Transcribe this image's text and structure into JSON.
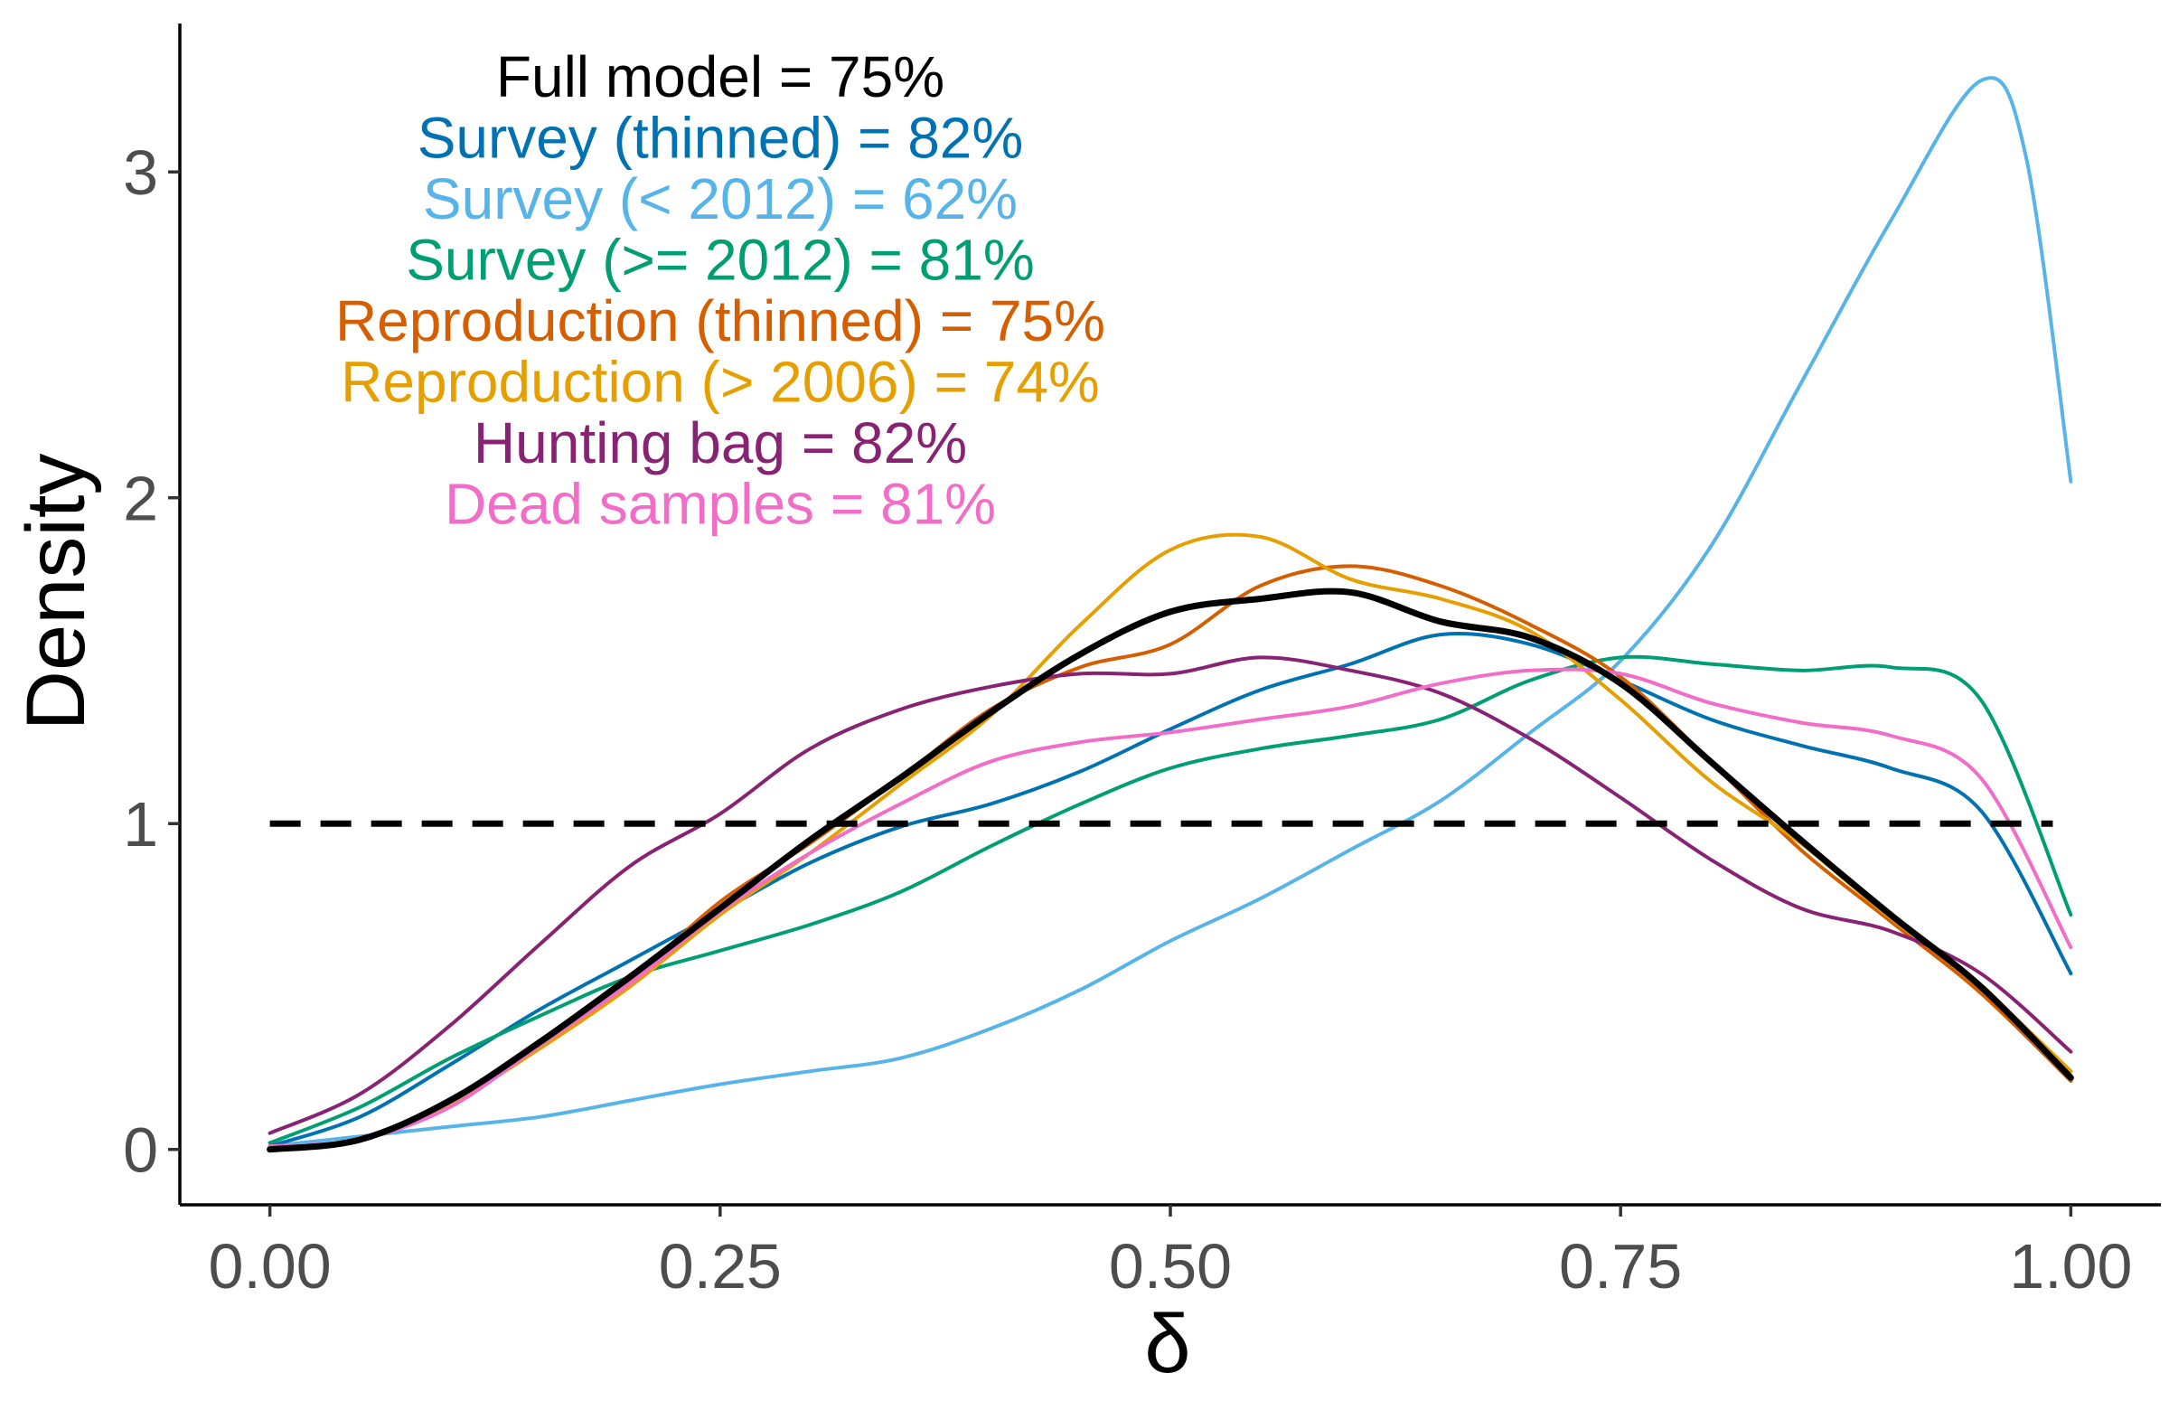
{
  "chart_data": {
    "type": "line",
    "xlabel": "δ",
    "ylabel": "Density",
    "xlim": [
      -0.05,
      1.05
    ],
    "ylim": [
      -0.17,
      3.45
    ],
    "x_ticks": [
      "0.00",
      "0.25",
      "0.50",
      "0.75",
      "1.00"
    ],
    "y_ticks": [
      "0",
      "1",
      "2",
      "3"
    ],
    "grid": false,
    "legend": "none",
    "reference_line": {
      "y": 1,
      "x_range": [
        0,
        0.99
      ],
      "style": "dashed",
      "color": "#000000"
    },
    "annotations": [
      {
        "text": "Full model = 75%",
        "color": "#000000"
      },
      {
        "text": "Survey (thinned) = 82%",
        "color": "#0072B2"
      },
      {
        "text": "Survey (< 2012) = 62%",
        "color": "#56B4E9"
      },
      {
        "text": "Survey (>= 2012) = 81%",
        "color": "#009E73"
      },
      {
        "text": "Reproduction (thinned) = 75%",
        "color": "#D55E00"
      },
      {
        "text": "Reproduction (> 2006) = 74%",
        "color": "#E69F00"
      },
      {
        "text": "Hunting bag = 82%",
        "color": "#882272"
      },
      {
        "text": "Dead samples = 81%",
        "color": "#F16DC7"
      }
    ],
    "x": [
      0,
      0.05,
      0.1,
      0.15,
      0.2,
      0.25,
      0.3,
      0.35,
      0.4,
      0.45,
      0.5,
      0.55,
      0.6,
      0.65,
      0.7,
      0.75,
      0.8,
      0.85,
      0.9,
      0.95,
      1.0
    ],
    "series": [
      {
        "name": "Survey (< 2012)",
        "color": "#56B4E9",
        "width": 4,
        "x": [
          0,
          0.05,
          0.1,
          0.15,
          0.2,
          0.25,
          0.3,
          0.35,
          0.4,
          0.45,
          0.5,
          0.55,
          0.6,
          0.65,
          0.7,
          0.75,
          0.8,
          0.85,
          0.9,
          0.95,
          0.975,
          1.0
        ],
        "values": [
          0.01,
          0.04,
          0.07,
          0.1,
          0.15,
          0.2,
          0.24,
          0.28,
          0.37,
          0.49,
          0.64,
          0.77,
          0.92,
          1.07,
          1.28,
          1.5,
          1.85,
          2.35,
          2.85,
          3.28,
          3.05,
          2.05
        ]
      },
      {
        "name": "Survey (thinned)",
        "color": "#0072B2",
        "width": 4,
        "values": [
          0.01,
          0.1,
          0.26,
          0.43,
          0.58,
          0.73,
          0.88,
          0.99,
          1.06,
          1.16,
          1.29,
          1.41,
          1.49,
          1.58,
          1.55,
          1.44,
          1.32,
          1.24,
          1.17,
          1.04,
          0.54
        ]
      },
      {
        "name": "Survey (>= 2012)",
        "color": "#009E73",
        "width": 4,
        "values": [
          0.02,
          0.13,
          0.28,
          0.41,
          0.53,
          0.61,
          0.69,
          0.79,
          0.93,
          1.06,
          1.17,
          1.23,
          1.27,
          1.32,
          1.44,
          1.51,
          1.49,
          1.47,
          1.48,
          1.38,
          0.72
        ]
      },
      {
        "name": "Reproduction (thinned)",
        "color": "#D55E00",
        "width": 4,
        "values": [
          0,
          0.03,
          0.14,
          0.33,
          0.52,
          0.76,
          0.94,
          1.14,
          1.35,
          1.48,
          1.55,
          1.73,
          1.79,
          1.73,
          1.61,
          1.45,
          1.19,
          0.92,
          0.7,
          0.48,
          0.21
        ]
      },
      {
        "name": "Reproduction (> 2006)",
        "color": "#E69F00",
        "width": 4,
        "values": [
          0,
          0.03,
          0.14,
          0.31,
          0.5,
          0.72,
          0.91,
          1.12,
          1.33,
          1.61,
          1.84,
          1.88,
          1.75,
          1.69,
          1.59,
          1.38,
          1.13,
          0.94,
          0.71,
          0.5,
          0.24
        ]
      },
      {
        "name": "Hunting bag",
        "color": "#882272",
        "width": 4,
        "values": [
          0.05,
          0.17,
          0.38,
          0.63,
          0.87,
          1.03,
          1.23,
          1.35,
          1.42,
          1.46,
          1.46,
          1.51,
          1.47,
          1.4,
          1.26,
          1.08,
          0.89,
          0.74,
          0.67,
          0.54,
          0.3
        ]
      },
      {
        "name": "Dead samples",
        "color": "#F16DC7",
        "width": 4,
        "values": [
          0.01,
          0.03,
          0.13,
          0.32,
          0.51,
          0.73,
          0.91,
          1.06,
          1.19,
          1.25,
          1.28,
          1.32,
          1.36,
          1.43,
          1.47,
          1.46,
          1.37,
          1.31,
          1.27,
          1.14,
          0.62
        ]
      },
      {
        "name": "Full model",
        "color": "#000000",
        "width": 7,
        "values": [
          0,
          0.03,
          0.15,
          0.33,
          0.53,
          0.74,
          0.95,
          1.14,
          1.34,
          1.52,
          1.65,
          1.69,
          1.71,
          1.62,
          1.57,
          1.43,
          1.19,
          0.95,
          0.72,
          0.5,
          0.22
        ]
      }
    ]
  }
}
